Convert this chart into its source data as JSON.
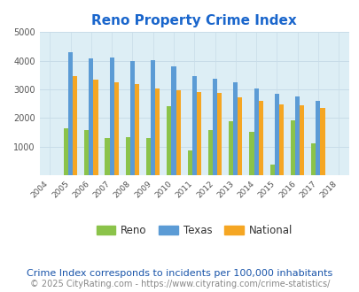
{
  "title": "Reno Property Crime Index",
  "years": [
    2004,
    2005,
    2006,
    2007,
    2008,
    2009,
    2010,
    2011,
    2012,
    2013,
    2014,
    2015,
    2016,
    2017,
    2018
  ],
  "reno": [
    0,
    1650,
    1570,
    1300,
    1320,
    1300,
    2420,
    880,
    1580,
    1880,
    1510,
    370,
    1910,
    1110,
    0
  ],
  "texas": [
    0,
    4300,
    4080,
    4100,
    3980,
    4020,
    3790,
    3470,
    3360,
    3250,
    3040,
    2840,
    2760,
    2590,
    0
  ],
  "national": [
    0,
    3450,
    3340,
    3240,
    3200,
    3040,
    2960,
    2920,
    2880,
    2710,
    2590,
    2480,
    2450,
    2360,
    0
  ],
  "reno_color": "#8bc34a",
  "texas_color": "#5b9bd5",
  "national_color": "#f5a623",
  "bg_color": "#ddeef5",
  "ylim": [
    0,
    5000
  ],
  "yticks": [
    0,
    1000,
    2000,
    3000,
    4000,
    5000
  ],
  "grid_color": "#c8dce8",
  "title_color": "#1a66cc",
  "footnote1": "Crime Index corresponds to incidents per 100,000 inhabitants",
  "footnote2": "© 2025 CityRating.com - https://www.cityrating.com/crime-statistics/",
  "footnote_color1": "#1a55aa",
  "footnote_color2": "#888888",
  "legend_fontsize": 8.5,
  "footnote1_fontsize": 8.0,
  "footnote2_fontsize": 7.0,
  "title_fontsize": 11
}
